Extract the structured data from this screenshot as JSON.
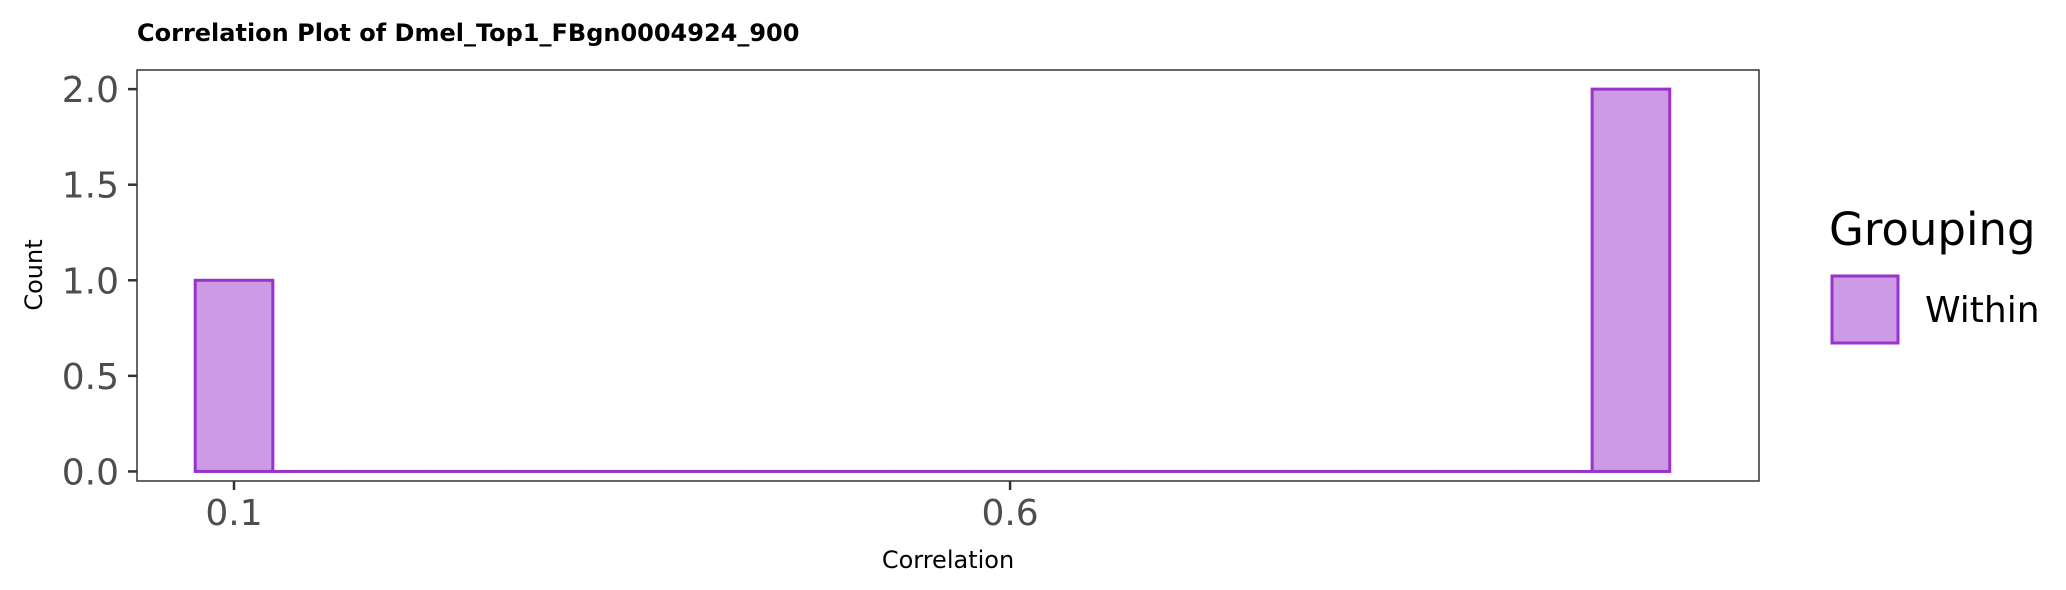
{
  "chart_data": {
    "type": "bar",
    "title": "Correlation Plot of Dmel_Top1_FBgn0004924_900",
    "xlabel": "Correlation",
    "ylabel": "Count",
    "x_ticks": [
      0.1,
      0.6
    ],
    "x_tick_labels": [
      "0.1",
      "0.6"
    ],
    "y_ticks": [
      0,
      0.5,
      1,
      1.5,
      2
    ],
    "y_tick_labels": [
      "0.0",
      "0.5",
      "1.0",
      "1.5",
      "2.0"
    ],
    "xlim": [
      0.0375,
      1.0825
    ],
    "ylim": [
      -0.05,
      2.1
    ],
    "bin_width": 0.05,
    "series": [
      {
        "name": "Within",
        "bin_centers": [
          0.1,
          0.15,
          0.2,
          0.25,
          0.3,
          0.35,
          0.4,
          0.45,
          0.5,
          0.55,
          0.6,
          0.65,
          0.7,
          0.75,
          0.8,
          0.85,
          0.9,
          0.95,
          1.0
        ],
        "counts": [
          1,
          0,
          0,
          0,
          0,
          0,
          0,
          0,
          0,
          0,
          0,
          0,
          0,
          0,
          0,
          0,
          0,
          0,
          2
        ]
      }
    ],
    "legend": {
      "title": "Grouping",
      "position": "right"
    },
    "grid": false,
    "colors": {
      "fill": "#cd9ae6",
      "stroke": "#9933cc",
      "panel_border": "#333333"
    }
  }
}
